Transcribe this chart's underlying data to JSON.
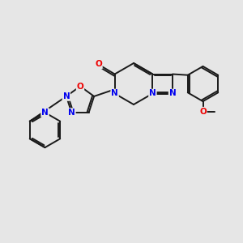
{
  "background_color": "#e6e6e6",
  "bond_color": "#1a1a1a",
  "atom_colors": {
    "N": "#0000ee",
    "O": "#ee0000",
    "C": "#1a1a1a"
  },
  "font_size_atom": 7.5,
  "bond_width": 1.4
}
